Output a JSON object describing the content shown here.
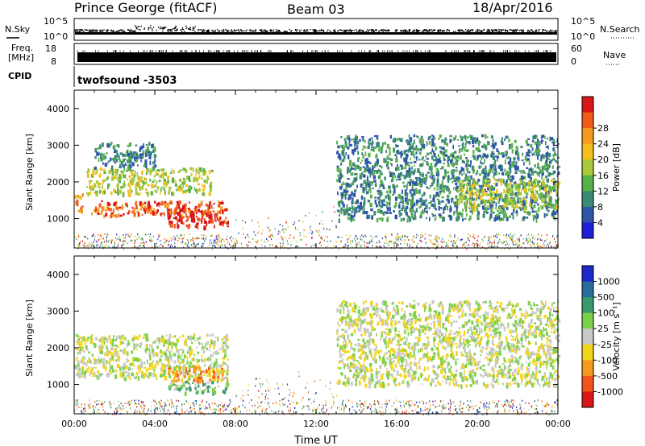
{
  "header": {
    "station": "Prince George (fitACF)",
    "beam": "Beam 03",
    "date": "18/Apr/2016"
  },
  "strip_labels": {
    "nsky": "N.Sky",
    "nsky_top": "10^5",
    "nsky_bottom": "10^0",
    "nsearch": "N.Search",
    "nsearch_top": "10^5",
    "nsearch_bottom": "10^0",
    "freq_line1": "Freq.",
    "freq_line2": "[MHz]",
    "freq_top": "18",
    "freq_bottom": "8",
    "nave": "Nave",
    "nave_top": "60",
    "nave_bottom": "0",
    "cpid": "CPID",
    "cpid_value": "twofsound -3503"
  },
  "colorbars": {
    "power": {
      "label": "Power [dB]",
      "ticks": [
        "4",
        "8",
        "12",
        "16",
        "20",
        "24",
        "28"
      ],
      "colors": [
        "#1f1fd6",
        "#2f56a8",
        "#3b8a74",
        "#58b04a",
        "#a8c93c",
        "#f2c01e",
        "#f59a1c",
        "#f25c18",
        "#d81818"
      ]
    },
    "velocity": {
      "label": "Velocity [m s⁻¹]",
      "ticks": [
        "1000",
        "500",
        "100",
        "25",
        "-25",
        "-100",
        "-500",
        "-1000"
      ],
      "colors": [
        "#1d28c8",
        "#2a6b9c",
        "#3a9a6a",
        "#7ed04a",
        "#c8c8c8",
        "#f2d51e",
        "#f59a1c",
        "#f25518",
        "#d81818"
      ]
    }
  },
  "chart_data": [
    {
      "type": "heatmap",
      "panel": "power",
      "ylabel": "Slant Range [km]",
      "ylim": [
        200,
        4500
      ],
      "yticks": [
        "1000",
        "2000",
        "3000",
        "4000"
      ],
      "xlim_hours": [
        0,
        24
      ],
      "features": [
        {
          "t0": 0.0,
          "t1": 0.4,
          "r0": 1200,
          "r1": 1700,
          "level": 6
        },
        {
          "t0": 0.8,
          "t1": 7.6,
          "r0": 1100,
          "r1": 1500,
          "level": 7
        },
        {
          "t0": 4.6,
          "t1": 7.6,
          "r0": 800,
          "r1": 1300,
          "level": 8
        },
        {
          "t0": 0.6,
          "t1": 6.8,
          "r0": 1700,
          "r1": 2400,
          "level": 4
        },
        {
          "t0": 1.0,
          "t1": 4.0,
          "r0": 2400,
          "r1": 3100,
          "level": 2
        },
        {
          "t0": 13.0,
          "t1": 24.0,
          "r0": 1000,
          "r1": 3300,
          "level": 2
        },
        {
          "t0": 19.0,
          "t1": 24.0,
          "r0": 1300,
          "r1": 2100,
          "level": 4
        }
      ]
    },
    {
      "type": "heatmap",
      "panel": "velocity",
      "ylabel": "Slant Range [km]",
      "ylim": [
        200,
        4500
      ],
      "yticks": [
        "1000",
        "2000",
        "3000",
        "4000"
      ],
      "xlabel": "Time UT",
      "xticks": [
        "00:00",
        "04:00",
        "08:00",
        "12:00",
        "16:00",
        "20:00",
        "00:00"
      ],
      "xlim_hours": [
        0,
        24
      ],
      "features": [
        {
          "t0": 0.0,
          "t1": 7.6,
          "r0": 1200,
          "r1": 2400,
          "level": 4
        },
        {
          "t0": 4.6,
          "t1": 7.6,
          "r0": 1100,
          "r1": 1500,
          "level": 6
        },
        {
          "t0": 4.6,
          "t1": 7.6,
          "r0": 800,
          "r1": 1100,
          "level": 3
        },
        {
          "t0": 13.0,
          "t1": 24.0,
          "r0": 1000,
          "r1": 3300,
          "level": 4
        }
      ]
    }
  ]
}
